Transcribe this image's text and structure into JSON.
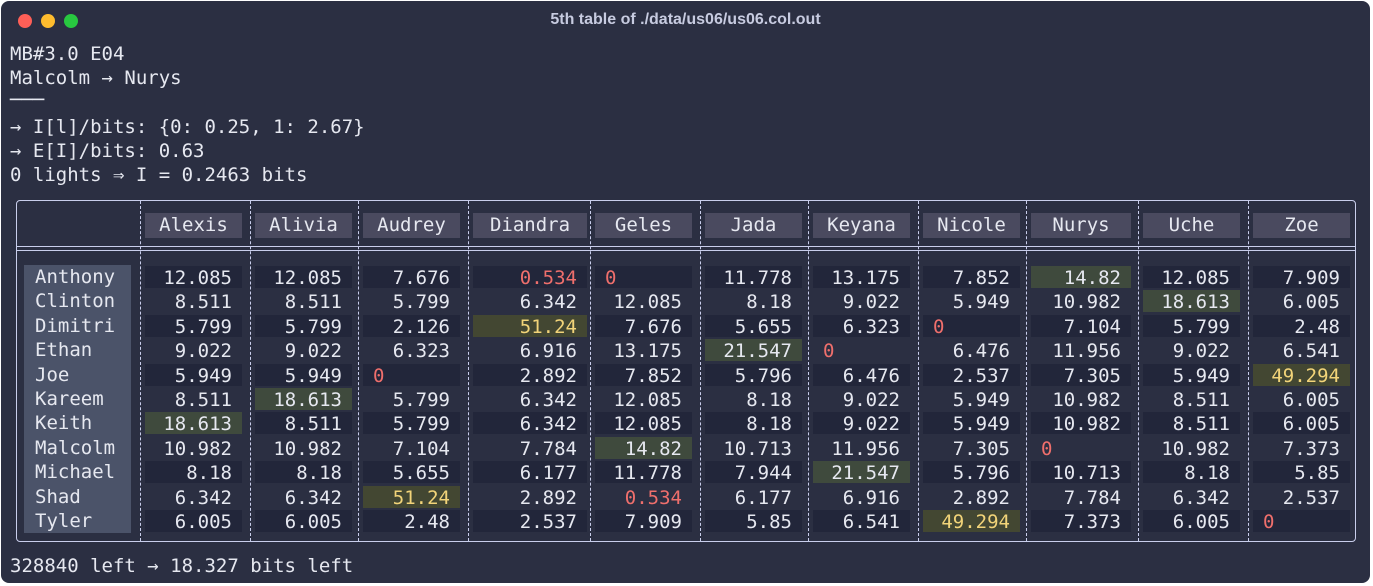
{
  "window": {
    "title": "5th table of ./data/us06/us06.col.out"
  },
  "header_lines": [
    "MB#3.0 E04",
    "Malcolm → Nurys",
    "───",
    "→ I[l]/bits: {0: 0.25, 1: 2.67}",
    "→ E[I]/bits: 0.63",
    "0 lights ⇒ I = 0.2463 bits"
  ],
  "table": {
    "columns": [
      "Alexis",
      "Alivia",
      "Audrey",
      "Diandra",
      "Geles",
      "Jada",
      "Keyana",
      "Nicole",
      "Nurys",
      "Uche",
      "Zoe"
    ],
    "rows": [
      {
        "name": "Anthony",
        "values": [
          "12.085",
          "12.085",
          "7.676",
          "0.534",
          "0",
          "11.778",
          "13.175",
          "7.852",
          "14.82",
          "12.085",
          "7.909"
        ]
      },
      {
        "name": "Clinton",
        "values": [
          "8.511",
          "8.511",
          "5.799",
          "6.342",
          "12.085",
          "8.18",
          "9.022",
          "5.949",
          "10.982",
          "18.613",
          "6.005"
        ]
      },
      {
        "name": "Dimitri",
        "values": [
          "5.799",
          "5.799",
          "2.126",
          "51.24",
          "7.676",
          "5.655",
          "6.323",
          "0",
          "7.104",
          "5.799",
          "2.48"
        ]
      },
      {
        "name": "Ethan",
        "values": [
          "9.022",
          "9.022",
          "6.323",
          "6.916",
          "13.175",
          "21.547",
          "0",
          "6.476",
          "11.956",
          "9.022",
          "6.541"
        ]
      },
      {
        "name": "Joe",
        "values": [
          "5.949",
          "5.949",
          "0",
          "2.892",
          "7.852",
          "5.796",
          "6.476",
          "2.537",
          "7.305",
          "5.949",
          "49.294"
        ]
      },
      {
        "name": "Kareem",
        "values": [
          "8.511",
          "18.613",
          "5.799",
          "6.342",
          "12.085",
          "8.18",
          "9.022",
          "5.949",
          "10.982",
          "8.511",
          "6.005"
        ]
      },
      {
        "name": "Keith",
        "values": [
          "18.613",
          "8.511",
          "5.799",
          "6.342",
          "12.085",
          "8.18",
          "9.022",
          "5.949",
          "10.982",
          "8.511",
          "6.005"
        ]
      },
      {
        "name": "Malcolm",
        "values": [
          "10.982",
          "10.982",
          "7.104",
          "7.784",
          "14.82",
          "10.713",
          "11.956",
          "7.305",
          "0",
          "10.982",
          "7.373"
        ]
      },
      {
        "name": "Michael",
        "values": [
          "8.18",
          "8.18",
          "5.655",
          "6.177",
          "11.778",
          "7.944",
          "21.547",
          "5.796",
          "10.713",
          "8.18",
          "5.85"
        ]
      },
      {
        "name": "Shad",
        "values": [
          "6.342",
          "6.342",
          "51.24",
          "2.892",
          "0.534",
          "6.177",
          "6.916",
          "2.892",
          "7.784",
          "6.342",
          "2.537"
        ]
      },
      {
        "name": "Tyler",
        "values": [
          "6.005",
          "6.005",
          "2.48",
          "2.537",
          "7.909",
          "5.85",
          "6.541",
          "49.294",
          "7.373",
          "6.005",
          "0"
        ]
      }
    ],
    "highlight_green": [
      [
        0,
        8
      ],
      [
        1,
        9
      ],
      [
        2,
        3
      ],
      [
        3,
        5
      ],
      [
        5,
        1
      ],
      [
        6,
        0
      ],
      [
        7,
        4
      ],
      [
        8,
        6
      ]
    ],
    "highlight_yellow": [
      [
        2,
        3
      ],
      [
        4,
        10
      ],
      [
        9,
        2
      ],
      [
        10,
        7
      ]
    ],
    "red_values": [
      [
        0,
        3
      ],
      [
        9,
        4
      ]
    ]
  },
  "footer": "328840 left → 18.327 bits left",
  "colors": {
    "background": "#2b2f42",
    "zero": "#ef6f6c",
    "highlight_green": "#3f4a3d",
    "highlight_yellow": "#f2d479"
  }
}
